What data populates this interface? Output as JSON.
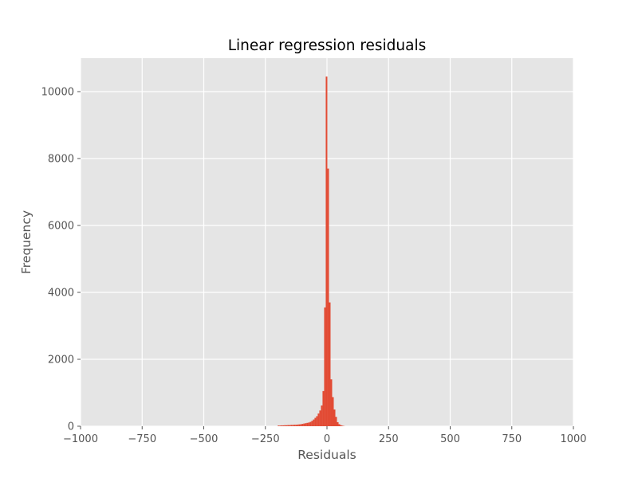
{
  "chart_data": {
    "type": "bar",
    "title": "Linear regression residuals",
    "xlabel": "Residuals",
    "ylabel": "Frequency",
    "xlim": [
      -1000,
      1000
    ],
    "ylim": [
      0,
      11000
    ],
    "xticks": [
      -1000,
      -750,
      -500,
      -250,
      0,
      250,
      500,
      750,
      1000
    ],
    "xtick_labels": [
      "−1000",
      "−750",
      "−500",
      "−250",
      "0",
      "250",
      "500",
      "750",
      "1000"
    ],
    "yticks": [
      0,
      2000,
      4000,
      6000,
      8000,
      10000
    ],
    "ytick_labels": [
      "0",
      "2000",
      "4000",
      "6000",
      "8000",
      "10000"
    ],
    "grid": true,
    "bin_width": 6.5,
    "bin_starts": [
      -200,
      -193.5,
      -187,
      -180.5,
      -174,
      -167.5,
      -161,
      -154.5,
      -148,
      -141.5,
      -135,
      -128.5,
      -122,
      -115.5,
      -109,
      -102.5,
      -96,
      -89.5,
      -83,
      -76.5,
      -70,
      -63.5,
      -57,
      -50.5,
      -44,
      -37.5,
      -31,
      -24.5,
      -18,
      -11.5,
      -5,
      1.5,
      8,
      14.5,
      21,
      27.5,
      34,
      40.5,
      47,
      53.5,
      60,
      66.5
    ],
    "counts": [
      20,
      20,
      25,
      25,
      30,
      30,
      35,
      35,
      40,
      40,
      45,
      45,
      50,
      55,
      60,
      70,
      80,
      90,
      100,
      110,
      130,
      160,
      200,
      250,
      300,
      380,
      470,
      620,
      1050,
      3550,
      10450,
      7700,
      3700,
      1400,
      870,
      500,
      280,
      120,
      60,
      30,
      15,
      5
    ],
    "colors": {
      "bar": "#E24A33",
      "plot_background": "#E5E5E5",
      "grid": "#FFFFFF",
      "tick_text": "#555555",
      "title_text": "#000000"
    }
  }
}
